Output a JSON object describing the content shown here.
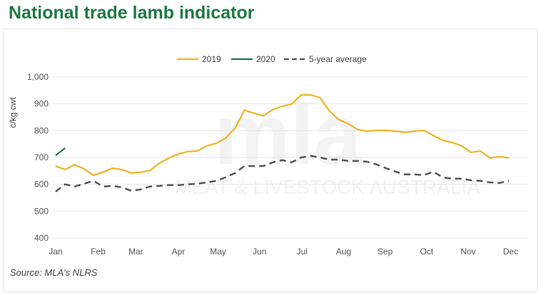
{
  "title": "National trade lamb indicator",
  "source": "Source: MLA's NLRS",
  "watermark": "mla MEAT & LIVESTOCK AUSTRALIA",
  "chart_data": {
    "type": "line",
    "title": "National trade lamb indicator",
    "ylabel": "c/kg cwt",
    "xlabel": "",
    "ylim": [
      400,
      1000
    ],
    "yticks": [
      400,
      500,
      600,
      700,
      800,
      900,
      1000
    ],
    "ytick_labels": [
      "400",
      "500",
      "600",
      "700",
      "800",
      "900",
      "1,000"
    ],
    "xlim": [
      0,
      49
    ],
    "month_ticks": [
      {
        "label": "Jan",
        "week": 0
      },
      {
        "label": "Feb",
        "week": 4.5
      },
      {
        "label": "Mar",
        "week": 8.5
      },
      {
        "label": "Apr",
        "week": 13
      },
      {
        "label": "May",
        "week": 17.2
      },
      {
        "label": "Jun",
        "week": 21.6
      },
      {
        "label": "Jul",
        "week": 26.1
      },
      {
        "label": "Aug",
        "week": 30.5
      },
      {
        "label": "Sep",
        "week": 34.9
      },
      {
        "label": "Oct",
        "week": 39.3
      },
      {
        "label": "Nov",
        "week": 43.7
      },
      {
        "label": "Dec",
        "week": 48.2
      }
    ],
    "grid": true,
    "legend_position": "top",
    "series": [
      {
        "name": "2019",
        "color": "#f0b323",
        "dash": false,
        "values": [
          668,
          655,
          673,
          658,
          634,
          645,
          660,
          655,
          642,
          645,
          652,
          679,
          698,
          713,
          722,
          724,
          743,
          753,
          772,
          809,
          876,
          865,
          855,
          878,
          891,
          899,
          933,
          933,
          923,
          873,
          841,
          825,
          804,
          798,
          801,
          801,
          798,
          793,
          798,
          801,
          782,
          764,
          756,
          743,
          719,
          724,
          698,
          703,
          698
        ]
      },
      {
        "name": "2020",
        "color": "#1e7a45",
        "dash": false,
        "values": [
          708,
          735
        ]
      },
      {
        "name": "5-year average",
        "color": "#555555",
        "dash": true,
        "values": [
          573,
          600,
          592,
          602,
          613,
          592,
          594,
          589,
          576,
          581,
          592,
          594,
          597,
          597,
          600,
          602,
          607,
          613,
          626,
          642,
          668,
          668,
          668,
          682,
          690,
          682,
          700,
          706,
          700,
          692,
          692,
          687,
          687,
          684,
          674,
          660,
          647,
          637,
          637,
          634,
          647,
          626,
          621,
          621,
          615,
          613,
          607,
          605,
          613
        ]
      }
    ]
  }
}
